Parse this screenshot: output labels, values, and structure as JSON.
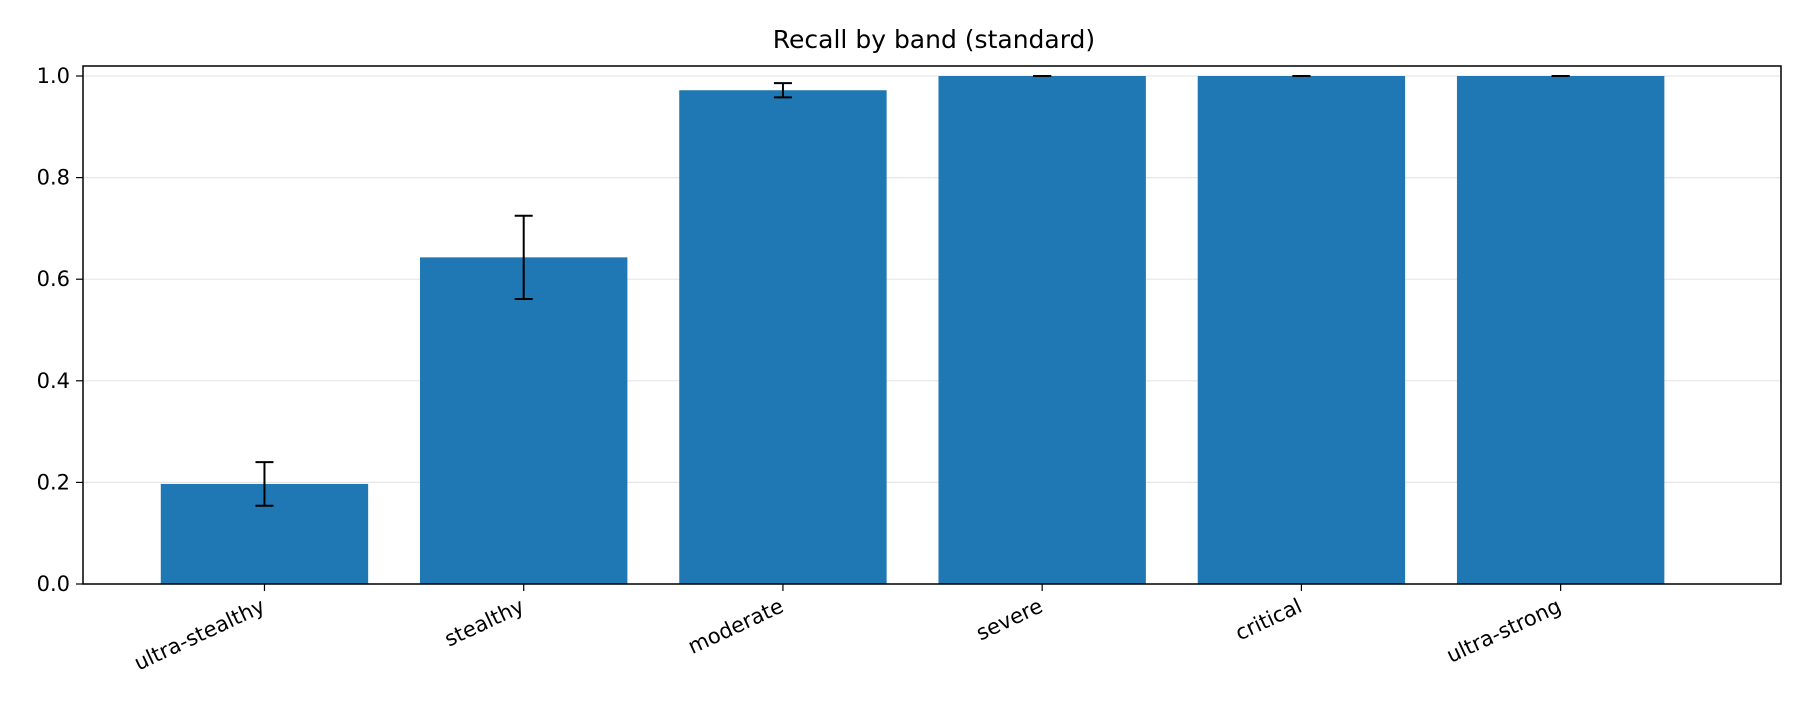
{
  "chart_data": {
    "type": "bar",
    "title": "Recall by band (standard)",
    "xlabel": "",
    "ylabel": "",
    "categories": [
      "ultra-stealthy",
      "stealthy",
      "moderate",
      "severe",
      "critical",
      "ultra-strong"
    ],
    "values": [
      0.197,
      0.643,
      0.972,
      1.0,
      1.0,
      1.0
    ],
    "errors": [
      0.043,
      0.082,
      0.014,
      0.0,
      0.0,
      0.0
    ],
    "ylim": [
      0,
      1.0
    ],
    "yticks": [
      "0.0",
      "0.2",
      "0.4",
      "0.6",
      "0.8",
      "1.0"
    ],
    "grid": "horizontal",
    "bar_color": "#1f77b4",
    "error_color": "#000000"
  }
}
